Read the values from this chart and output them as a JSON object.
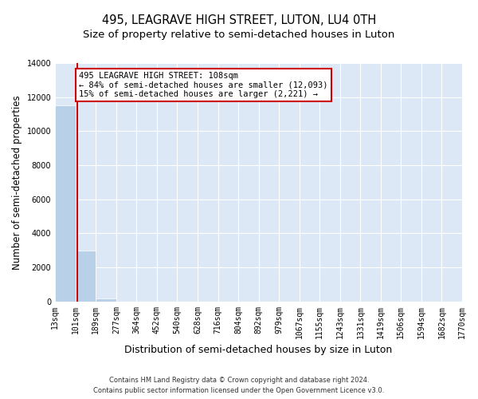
{
  "title": "495, LEAGRAVE HIGH STREET, LUTON, LU4 0TH",
  "subtitle": "Size of property relative to semi-detached houses in Luton",
  "xlabel": "Distribution of semi-detached houses by size in Luton",
  "ylabel": "Number of semi-detached properties",
  "bin_edges": [
    13,
    101,
    189,
    277,
    364,
    452,
    540,
    628,
    716,
    804,
    892,
    979,
    1067,
    1155,
    1243,
    1331,
    1419,
    1506,
    1594,
    1682,
    1770
  ],
  "bar_heights": [
    11500,
    3000,
    150,
    0,
    0,
    0,
    0,
    0,
    0,
    0,
    0,
    0,
    0,
    0,
    0,
    0,
    0,
    0,
    0,
    0
  ],
  "bar_color": "#b8d0e8",
  "property_size": 108,
  "property_line_color": "#cc0000",
  "annotation_text": "495 LEAGRAVE HIGH STREET: 108sqm\n← 84% of semi-detached houses are smaller (12,093)\n15% of semi-detached houses are larger (2,221) →",
  "annotation_box_color": "#ffffff",
  "annotation_border_color": "#cc0000",
  "ylim": [
    0,
    14000
  ],
  "yticks": [
    0,
    2000,
    4000,
    6000,
    8000,
    10000,
    12000,
    14000
  ],
  "grid_color": "#ffffff",
  "bg_color": "#dce8f5",
  "footer_line1": "Contains HM Land Registry data © Crown copyright and database right 2024.",
  "footer_line2": "Contains public sector information licensed under the Open Government Licence v3.0.",
  "title_fontsize": 10.5,
  "subtitle_fontsize": 9.5,
  "ylabel_fontsize": 8.5,
  "xlabel_fontsize": 9,
  "tick_fontsize": 7,
  "ann_fontsize": 7.5,
  "footer_fontsize": 6
}
